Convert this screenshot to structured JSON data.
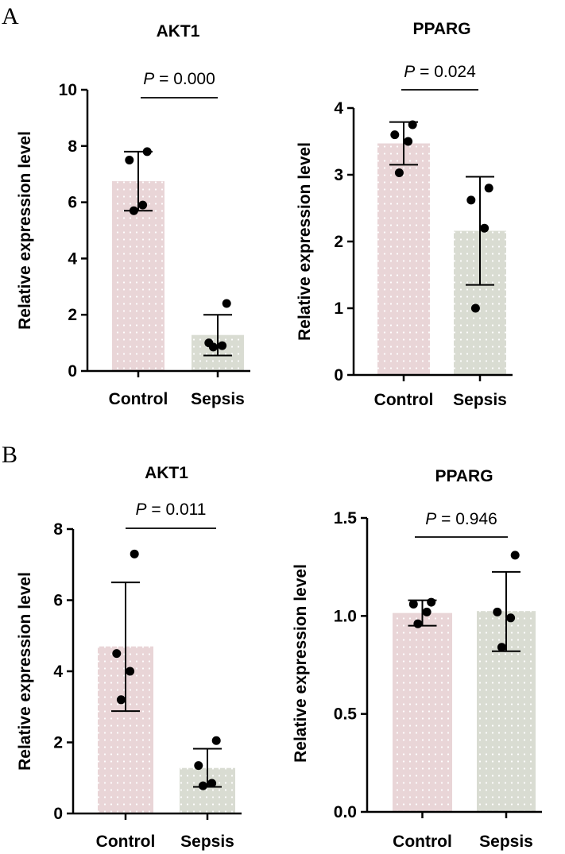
{
  "figure": {
    "labels": [
      "A",
      "B"
    ]
  },
  "colors": {
    "control": "#e9d5d7",
    "sepsis": "#d9dcd2",
    "dots": "#ffffff",
    "ink": "#000000"
  },
  "chart_data": [
    {
      "panel": "A",
      "type": "bar",
      "title": "AKT1",
      "ylabel": "Relative expression level",
      "xlabel": "",
      "categories": [
        "Control",
        "Sepsis"
      ],
      "values": [
        6.75,
        1.28
      ],
      "errors": [
        [
          5.7,
          7.8
        ],
        [
          0.55,
          2.0
        ]
      ],
      "points": [
        [
          7.8,
          7.5,
          5.9,
          5.7
        ],
        [
          2.4,
          1.0,
          0.9,
          0.85
        ]
      ],
      "ylim": [
        0,
        10
      ],
      "yticks": [
        "0",
        "2",
        "4",
        "6",
        "8",
        "10"
      ],
      "p_prefix": "P",
      "p_text": " = 0.000"
    },
    {
      "panel": "A",
      "type": "bar",
      "title": "PPARG",
      "ylabel": "Relative expression level",
      "xlabel": "",
      "categories": [
        "Control",
        "Sepsis"
      ],
      "values": [
        3.47,
        2.16
      ],
      "errors": [
        [
          3.15,
          3.79
        ],
        [
          1.35,
          2.97
        ]
      ],
      "points": [
        [
          3.75,
          3.6,
          3.5,
          3.03
        ],
        [
          2.8,
          2.62,
          2.2,
          1.0
        ]
      ],
      "ylim": [
        0,
        4
      ],
      "yticks": [
        "0",
        "1",
        "2",
        "3",
        "4"
      ],
      "p_prefix": "P",
      "p_text": " = 0.024"
    },
    {
      "panel": "B",
      "type": "bar",
      "title": "AKT1",
      "ylabel": "Relative expression level",
      "xlabel": "",
      "categories": [
        "Control",
        "Sepsis"
      ],
      "values": [
        4.7,
        1.28
      ],
      "errors": [
        [
          2.88,
          6.5
        ],
        [
          0.75,
          1.82
        ]
      ],
      "points": [
        [
          7.3,
          4.5,
          4.0,
          3.2
        ],
        [
          2.05,
          1.35,
          0.85,
          0.78
        ]
      ],
      "ylim": [
        0,
        8
      ],
      "yticks": [
        "0",
        "2",
        "4",
        "6",
        "8"
      ],
      "p_prefix": "P",
      "p_text": " = 0.011"
    },
    {
      "panel": "B",
      "type": "bar",
      "title": "PPARG",
      "ylabel": "Relative expression level",
      "xlabel": "",
      "categories": [
        "Control",
        "Sepsis"
      ],
      "values": [
        1.015,
        1.025
      ],
      "errors": [
        [
          0.95,
          1.08
        ],
        [
          0.82,
          1.225
        ]
      ],
      "points": [
        [
          1.07,
          1.06,
          1.02,
          0.96
        ],
        [
          1.31,
          1.02,
          0.99,
          0.84
        ]
      ],
      "ylim": [
        0,
        1.5
      ],
      "yticks": [
        "0.0",
        "0.5",
        "1.0",
        "1.5"
      ],
      "p_prefix": "P",
      "p_text": " = 0.946"
    }
  ]
}
